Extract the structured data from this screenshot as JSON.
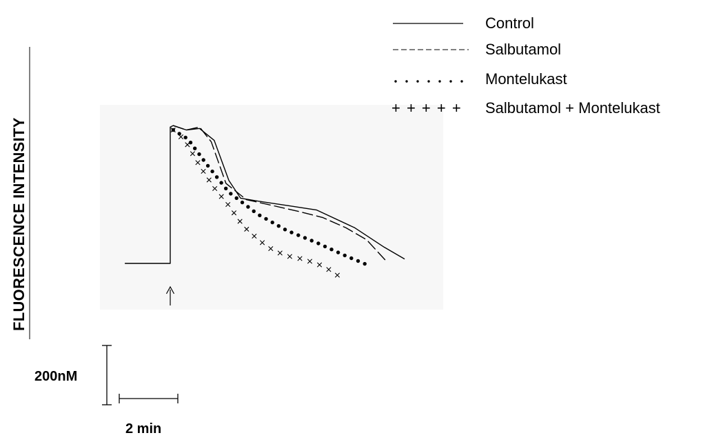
{
  "chart_data": {
    "type": "line",
    "title": "",
    "ylabel": "FLUORESCENCE INTENSITY",
    "xlabel": "",
    "x_units": "min",
    "y_units": "nM",
    "scale_bars": {
      "x": {
        "label": "2 min",
        "value_min": 2
      },
      "y": {
        "label": "200nM",
        "value_nM": 200
      }
    },
    "stimulus_marker": {
      "glyph": "↑",
      "x_min": 0.0
    },
    "baseline_nM": 0,
    "series": [
      {
        "name": "Control",
        "legend_symbol": "——————",
        "style": "solid",
        "x": [
          -1.55,
          0.0,
          0.0,
          0.1,
          0.55,
          1.0,
          1.5,
          2.0,
          2.4,
          3.0,
          4.0,
          5.0,
          6.3,
          7.3,
          8.0
        ],
        "y": [
          0,
          0,
          460,
          465,
          450,
          455,
          415,
          280,
          220,
          210,
          195,
          180,
          120,
          55,
          15
        ]
      },
      {
        "name": "Salbutamol",
        "legend_symbol": "---------",
        "style": "dashed",
        "x": [
          0.1,
          0.55,
          1.0,
          1.4,
          1.9,
          2.6,
          3.5,
          4.4,
          5.2,
          6.0,
          6.7,
          7.4
        ],
        "y": [
          465,
          450,
          460,
          410,
          270,
          215,
          195,
          175,
          155,
          120,
          80,
          5
        ]
      },
      {
        "name": "Montelukast",
        "legend_symbol": "· · · · · · ·",
        "style": "dotted",
        "x": [
          0.1,
          0.6,
          1.2,
          2.0,
          3.0,
          4.0,
          5.0,
          6.0,
          6.85
        ],
        "y": [
          450,
          420,
          340,
          240,
          165,
          110,
          70,
          25,
          -10
        ]
      },
      {
        "name": "Salbutamol + Montelukast",
        "legend_symbol": "+ + + + +",
        "style": "x-markers",
        "x": [
          0.1,
          0.5,
          1.0,
          1.5,
          2.0,
          2.5,
          3.0,
          3.5,
          4.0,
          4.5,
          5.0,
          5.5,
          5.85
        ],
        "y": [
          450,
          415,
          330,
          255,
          195,
          125,
          80,
          45,
          25,
          15,
          0,
          -25,
          -50
        ]
      }
    ]
  }
}
